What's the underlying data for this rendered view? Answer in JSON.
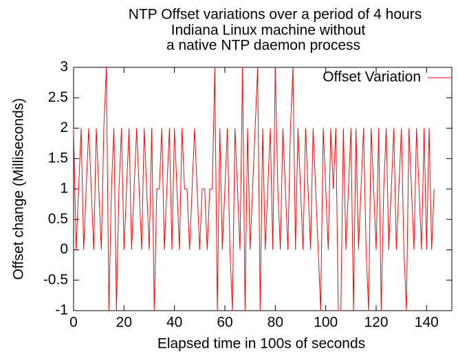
{
  "chart_data": {
    "type": "line",
    "title": [
      "NTP Offset variations over a period of 4 hours",
      "Indiana Linux machine without",
      "a native NTP daemon process"
    ],
    "xlabel": "Elapsed time in 100s of seconds",
    "ylabel": "Offset change (Milliseconds)",
    "x": [
      0,
      1,
      2,
      3,
      4,
      5,
      6,
      7,
      8,
      9,
      10,
      11,
      12,
      13,
      14,
      15,
      16,
      17,
      18,
      19,
      20,
      21,
      22,
      23,
      24,
      25,
      26,
      27,
      28,
      29,
      30,
      31,
      32,
      33,
      34,
      35,
      36,
      37,
      38,
      39,
      40,
      41,
      42,
      43,
      44,
      45,
      46,
      47,
      48,
      49,
      50,
      51,
      52,
      53,
      54,
      55,
      56,
      57,
      58,
      59,
      60,
      61,
      62,
      63,
      64,
      65,
      66,
      67,
      68,
      69,
      70,
      71,
      72,
      73,
      74,
      75,
      76,
      77,
      78,
      79,
      80,
      81,
      82,
      83,
      84,
      85,
      86,
      87,
      88,
      89,
      90,
      91,
      92,
      93,
      94,
      95,
      96,
      97,
      98,
      99,
      100,
      101,
      102,
      103,
      104,
      105,
      106,
      107,
      108,
      109,
      110,
      111,
      112,
      113,
      114,
      115,
      116,
      117,
      118,
      119,
      120,
      121,
      122,
      123,
      124,
      125,
      126,
      127,
      128,
      129,
      130,
      131,
      132,
      133,
      134,
      135,
      136,
      137,
      138,
      139,
      140,
      141,
      142,
      143
    ],
    "series": [
      {
        "name": "Offset Variation",
        "color": "#ff0000",
        "values": [
          2,
          0,
          1,
          2,
          0,
          1,
          2,
          1,
          0,
          2,
          1,
          0,
          2,
          3,
          -1,
          1,
          2,
          -1,
          1,
          2,
          0,
          1,
          2,
          0,
          1,
          2,
          1,
          0,
          2,
          1,
          0,
          2,
          -1,
          1,
          1,
          2,
          0,
          1,
          2,
          0,
          2,
          1,
          0,
          2,
          1,
          1,
          0,
          1,
          2,
          1,
          0,
          1,
          1,
          0,
          1,
          1,
          3,
          -1,
          2,
          0,
          1,
          2,
          0,
          -1,
          2,
          1,
          0,
          3,
          -1,
          2,
          0,
          1,
          2,
          3,
          -1,
          2,
          0,
          1,
          2,
          0,
          3,
          1,
          0,
          2,
          1,
          0,
          2,
          3,
          0,
          2,
          1,
          0,
          2,
          1,
          0,
          2,
          1,
          0,
          -1,
          2,
          1,
          0,
          2,
          1,
          2,
          -1,
          -1,
          2,
          0,
          1,
          2,
          -1,
          2,
          0,
          1,
          2,
          0,
          -1,
          2,
          1,
          0,
          2,
          -1,
          1,
          2,
          0,
          1,
          2,
          0,
          1,
          2,
          0,
          -1,
          2,
          1,
          0,
          2,
          1,
          0,
          2,
          0,
          2,
          0,
          1
        ]
      }
    ],
    "xlim": [
      0,
      150
    ],
    "ylim": [
      -1,
      3
    ],
    "xticks": [
      0,
      20,
      40,
      60,
      80,
      100,
      120,
      140
    ],
    "yticks": [
      -1,
      -0.5,
      0,
      0.5,
      1,
      1.5,
      2,
      2.5,
      3
    ],
    "legend": "upper right"
  }
}
